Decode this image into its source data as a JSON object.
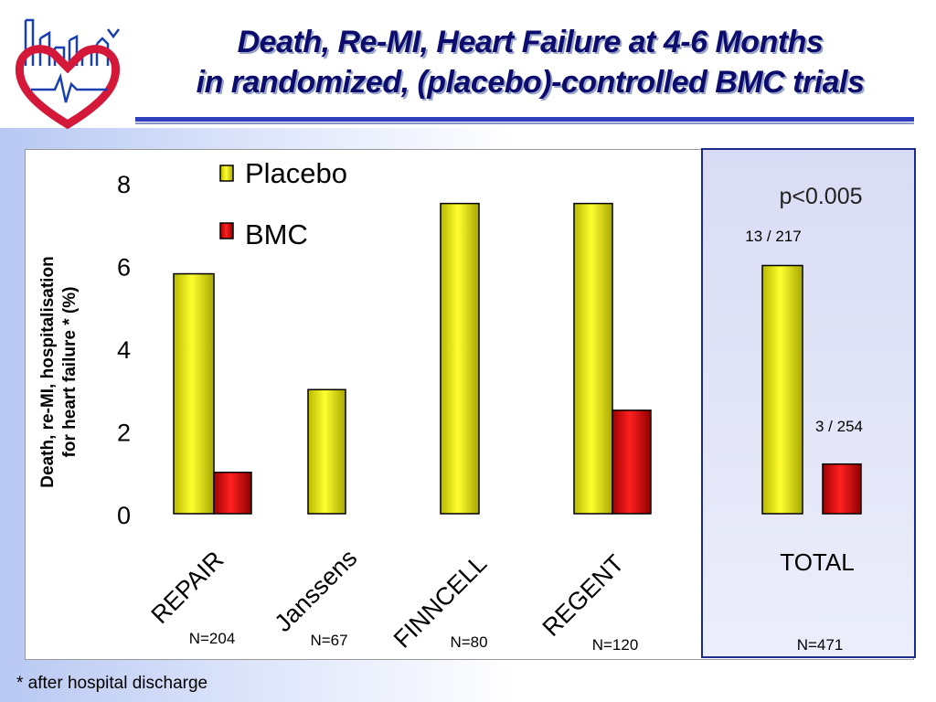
{
  "title": {
    "line1": "Death, Re-MI, Heart Failure at 4-6 Months",
    "line2": "in randomized, (placebo)-controlled BMC trials"
  },
  "footnote": "* after hospital discharge",
  "colors": {
    "placebo": "#f2f200",
    "bmc": "#e01010",
    "title": "#0c0c6e",
    "highlight_border": "#1c2a8c"
  },
  "chart_data": {
    "type": "bar",
    "title": "",
    "xlabel": "",
    "ylabel": "Death, re-MI, hospitalisation for heart failure * (%)",
    "ylabel_lines": [
      "Death, re-MI, hospitalisation",
      "for heart failure * (%)"
    ],
    "ylim": [
      0,
      8
    ],
    "yticks": [
      0,
      2,
      4,
      6,
      8
    ],
    "grid": false,
    "legend_position": "top",
    "categories": [
      "REPAIR",
      "Janssens",
      "FINNCELL",
      "REGENT",
      "TOTAL"
    ],
    "sample_sizes": [
      "N=204",
      "N=67",
      "N=80",
      "N=120",
      "N=471"
    ],
    "series": [
      {
        "name": "Placebo",
        "values": [
          5.8,
          3.0,
          7.5,
          7.5,
          6.0
        ]
      },
      {
        "name": "BMC",
        "values": [
          1.0,
          null,
          null,
          2.5,
          1.2
        ]
      }
    ],
    "annotations": {
      "p_value": "p<0.005",
      "total_placebo": "13 / 217",
      "total_bmc": "3 / 254"
    }
  }
}
